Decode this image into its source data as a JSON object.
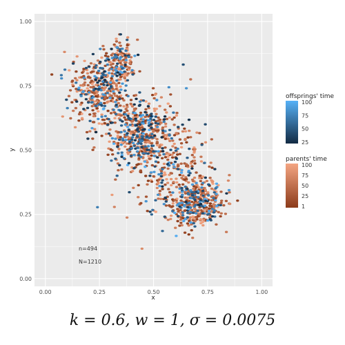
{
  "chart_data": {
    "type": "scatter",
    "xlabel": "x",
    "ylabel": "y",
    "xlim": [
      -0.05,
      1.05
    ],
    "ylim": [
      -0.03,
      1.03
    ],
    "x_ticks": [
      "0.00",
      "0.25",
      "0.50",
      "0.75",
      "1.00"
    ],
    "y_ticks": [
      "0.00",
      "0.25",
      "0.50",
      "0.75",
      "1.00"
    ],
    "grid": true,
    "legend_placement": "right",
    "annotations": [
      "n=494",
      "N=1210"
    ],
    "legends": [
      {
        "title": "offsprings' time",
        "ticks": [
          "100",
          "75",
          "50",
          "25"
        ],
        "colors": [
          "#56b1f7",
          "#132b43"
        ]
      },
      {
        "title": "parents' time",
        "ticks": [
          "100",
          "75",
          "50",
          "25",
          "1"
        ],
        "colors": [
          "#f4a582",
          "#8c3b1a"
        ]
      }
    ],
    "series": [
      {
        "name": "offsprings' time",
        "count": 494
      },
      {
        "name": "parents' time",
        "count": 1210
      }
    ],
    "clusters": [
      {
        "x": 0.25,
        "y": 0.73,
        "sx": 0.07,
        "sy": 0.07
      },
      {
        "x": 0.43,
        "y": 0.57,
        "sx": 0.07,
        "sy": 0.06
      },
      {
        "x": 0.7,
        "y": 0.3,
        "sx": 0.06,
        "sy": 0.05
      },
      {
        "x": 0.55,
        "y": 0.45,
        "sx": 0.1,
        "sy": 0.1
      },
      {
        "x": 0.35,
        "y": 0.85,
        "sx": 0.03,
        "sy": 0.04
      }
    ]
  },
  "caption": "k = 0.6, w = 1, σ = 0.0075"
}
